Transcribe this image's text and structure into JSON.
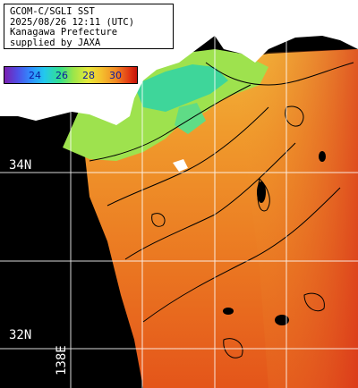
{
  "info": {
    "line1": "GCOM-C/SGLI SST",
    "line2": "2025/08/26 12:11 (UTC)",
    "line3": "Kanagawa Prefecture",
    "line4": "supplied by JAXA"
  },
  "scale": {
    "ticks": [
      "24",
      "26",
      "28",
      "30"
    ]
  },
  "grid": {
    "lat_labels": [
      "34N",
      "32N"
    ],
    "lon_label": "138E"
  },
  "colors": {
    "land": "#ffffff",
    "nodata": "#000000",
    "warm": "#e96a1e",
    "cool": "#4fd08a"
  }
}
